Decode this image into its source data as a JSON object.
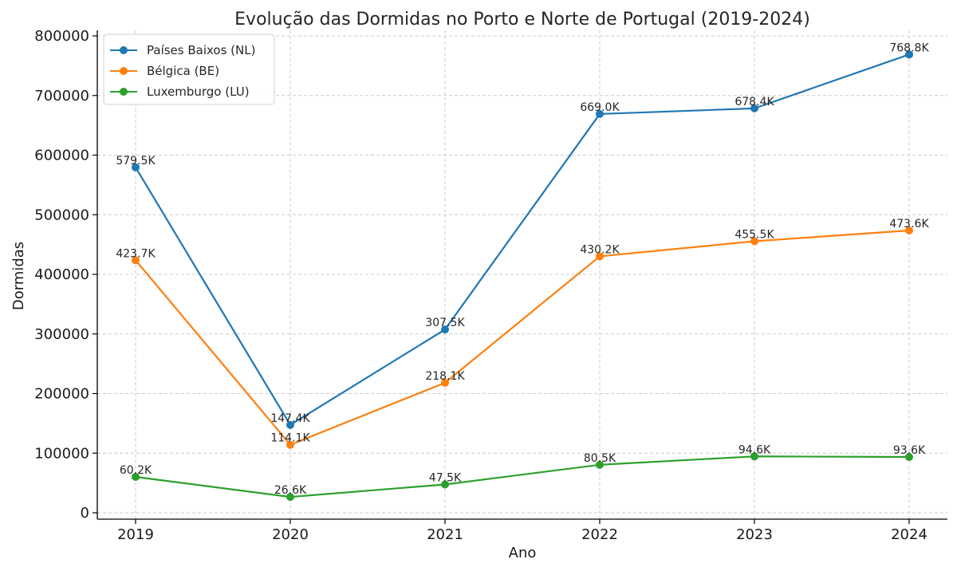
{
  "chart_data": {
    "type": "line",
    "title": "Evolução das Dormidas no Porto e Norte de Portugal (2019-2024)",
    "xlabel": "Ano",
    "ylabel": "Dormidas",
    "x": [
      "2019",
      "2020",
      "2021",
      "2022",
      "2023",
      "2024"
    ],
    "yticks": [
      "0",
      "100000",
      "200000",
      "300000",
      "400000",
      "500000",
      "600000",
      "700000",
      "800000"
    ],
    "ylim": [
      0,
      800000
    ],
    "grid": true,
    "legend_position": "top-left",
    "series": [
      {
        "name": "Países Baixos (NL)",
        "color": "#1f77b4",
        "values": [
          579500,
          147400,
          307500,
          669000,
          678400,
          768800
        ],
        "labels": [
          "579.5K",
          "147.4K",
          "307.5K",
          "669.0K",
          "678.4K",
          "768.8K"
        ]
      },
      {
        "name": "Bélgica (BE)",
        "color": "#ff7f0e",
        "values": [
          423700,
          114100,
          218100,
          430200,
          455500,
          473600
        ],
        "labels": [
          "423.7K",
          "114.1K",
          "218.1K",
          "430.2K",
          "455.5K",
          "473.6K"
        ]
      },
      {
        "name": "Luxemburgo (LU)",
        "color": "#2ca02c",
        "values": [
          60200,
          26600,
          47500,
          80500,
          94600,
          93600
        ],
        "labels": [
          "60.2K",
          "26.6K",
          "47.5K",
          "80.5K",
          "94.6K",
          "93.6K"
        ]
      }
    ]
  }
}
